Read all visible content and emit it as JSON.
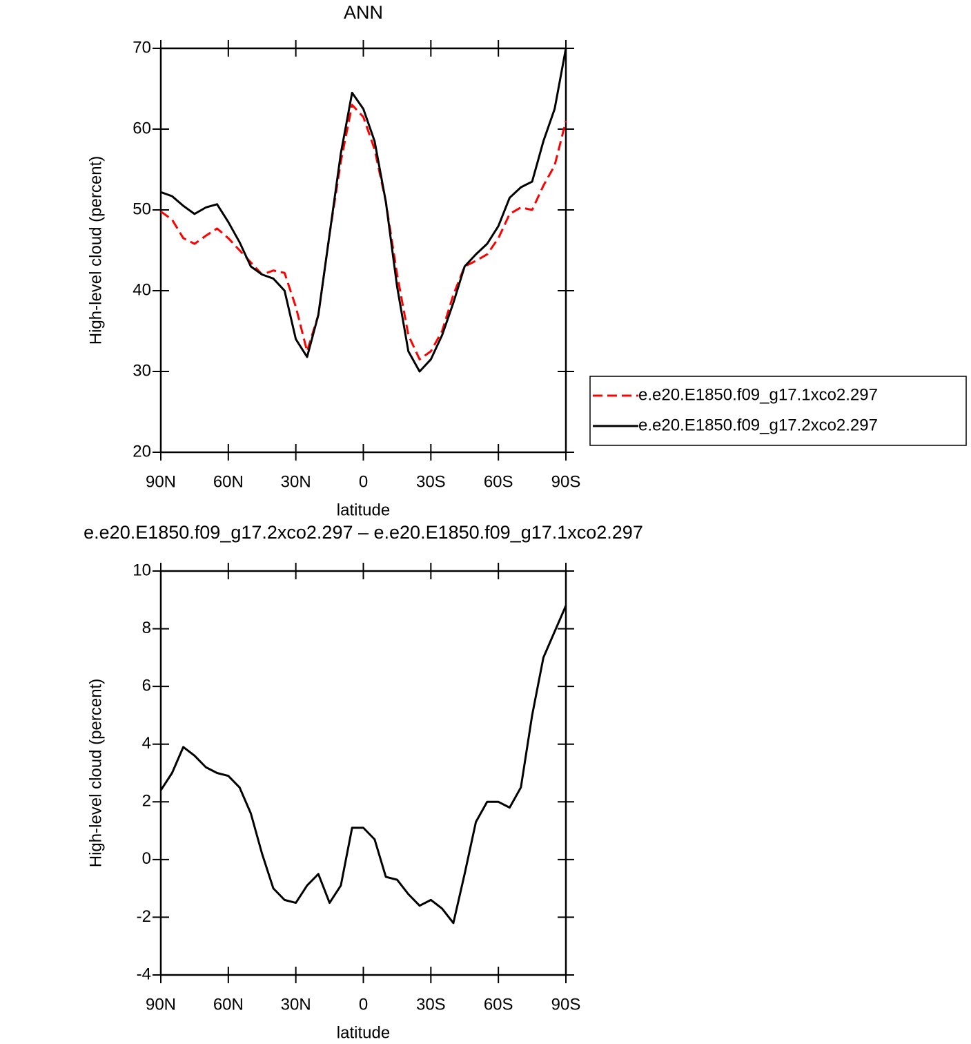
{
  "chart_data": [
    {
      "type": "line",
      "title": "ANN",
      "xlabel": "latitude",
      "ylabel": "High-level cloud (percent)",
      "x": [
        90,
        85,
        80,
        75,
        70,
        65,
        60,
        55,
        50,
        45,
        40,
        35,
        30,
        25,
        20,
        15,
        10,
        5,
        0,
        -5,
        -10,
        -15,
        -20,
        -25,
        -30,
        -35,
        -40,
        -45,
        -50,
        -55,
        -60,
        -65,
        -70,
        -75,
        -80,
        -85,
        -90
      ],
      "series": [
        {
          "name": "e.e20.E1850.f09_g17.1xco2.297",
          "color": "#ff0000",
          "dash": true,
          "values": [
            49.8,
            48.8,
            46.5,
            45.8,
            46.8,
            47.7,
            46.5,
            45,
            43.5,
            42,
            42.5,
            42.2,
            38,
            32.5,
            37,
            47,
            56,
            63,
            61.5,
            57.5,
            51,
            42,
            34.5,
            31.5,
            32.5,
            35,
            39.5,
            43,
            43.7,
            44.5,
            46.5,
            49.5,
            50.3,
            50,
            53,
            55.5,
            61
          ]
        },
        {
          "name": "e.e20.E1850.f09_g17.2xco2.297",
          "color": "#000000",
          "dash": false,
          "values": [
            52.2,
            51.7,
            50.5,
            49.5,
            50.3,
            50.7,
            48.5,
            46,
            43,
            42,
            41.5,
            40,
            34,
            31.8,
            37,
            47,
            57,
            64.5,
            62.5,
            58.5,
            51,
            40.5,
            32.5,
            30,
            31.5,
            34.5,
            38.5,
            43,
            44.5,
            45.8,
            48,
            51.5,
            52.8,
            53.5,
            58.5,
            62.5,
            70
          ]
        }
      ],
      "xlim": [
        90,
        -90
      ],
      "xticks": [
        {
          "value": 90,
          "label": "90N"
        },
        {
          "value": 60,
          "label": "60N"
        },
        {
          "value": 30,
          "label": "30N"
        },
        0,
        {
          "value": -30,
          "label": "30S"
        },
        {
          "value": -60,
          "label": "60S"
        },
        {
          "value": -90,
          "label": "90S"
        }
      ],
      "ylim": [
        20,
        70
      ],
      "yticks": [
        20,
        30,
        40,
        50,
        60,
        70
      ],
      "legend": "right"
    },
    {
      "type": "line",
      "title": "e.e20.E1850.f09_g17.2xco2.297 – e.e20.E1850.f09_g17.1xco2.297",
      "xlabel": "latitude",
      "ylabel": "High-level cloud (percent)",
      "x": [
        90,
        85,
        80,
        75,
        70,
        65,
        60,
        55,
        50,
        45,
        40,
        35,
        30,
        25,
        20,
        15,
        10,
        5,
        0,
        -5,
        -10,
        -15,
        -20,
        -25,
        -30,
        -35,
        -40,
        -45,
        -50,
        -55,
        -60,
        -65,
        -70,
        -75,
        -80,
        -85,
        -90
      ],
      "color": "#000000",
      "values": [
        2.4,
        3.0,
        3.9,
        3.6,
        3.2,
        3.0,
        2.9,
        2.5,
        1.6,
        0.2,
        -1.0,
        -1.4,
        -1.5,
        -0.9,
        -0.5,
        -1.5,
        -0.9,
        1.1,
        1.1,
        0.7,
        -0.6,
        -0.7,
        -1.2,
        -1.6,
        -1.4,
        -1.7,
        -2.2,
        -0.5,
        1.3,
        2.0,
        2.0,
        1.8,
        2.5,
        5.0,
        7.0,
        7.9,
        8.8
      ],
      "xlim": [
        90,
        -90
      ],
      "xticks": [
        {
          "value": 90,
          "label": "90N"
        },
        {
          "value": 60,
          "label": "60N"
        },
        {
          "value": 30,
          "label": "30N"
        },
        0,
        {
          "value": -30,
          "label": "30S"
        },
        {
          "value": -60,
          "label": "60S"
        },
        {
          "value": -90,
          "label": "90S"
        }
      ],
      "ylim": [
        -4,
        10
      ],
      "yticks": [
        -4,
        -2,
        0,
        2,
        4,
        6,
        8,
        10
      ]
    }
  ]
}
